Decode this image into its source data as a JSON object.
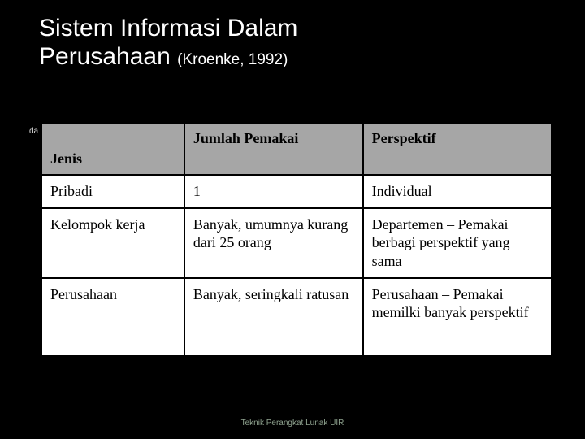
{
  "title_line1": "Sistem Informasi Dalam",
  "title_line2": "Perusahaan",
  "title_citation": "(Kroenke, 1992)",
  "hint_text": "da",
  "table": {
    "headers": {
      "col1": "Jenis",
      "col2": "Jumlah Pemakai",
      "col3": "Perspektif"
    },
    "rows": [
      {
        "c1": "Pribadi",
        "c2": "1",
        "c3": "Individual"
      },
      {
        "c1": "Kelompok kerja",
        "c2": "Banyak, umumnya kurang dari 25 orang",
        "c3": "Departemen – Pemakai berbagi perspektif yang sama"
      },
      {
        "c1": "Perusahaan",
        "c2": "Banyak, seringkali ratusan",
        "c3": "Perusahaan – Pemakai memilki banyak perspektif"
      }
    ],
    "header_bg": "#a6a6a6",
    "cell_bg": "#ffffff",
    "border_color": "#000000",
    "text_color": "#000000",
    "font_family": "Georgia, 'Times New Roman', serif",
    "font_size_pt": 13
  },
  "footer": "Teknik Perangkat Lunak UIR",
  "slide_bg": "#000000",
  "title_color": "#ffffff",
  "footer_color": "#8fa38f"
}
